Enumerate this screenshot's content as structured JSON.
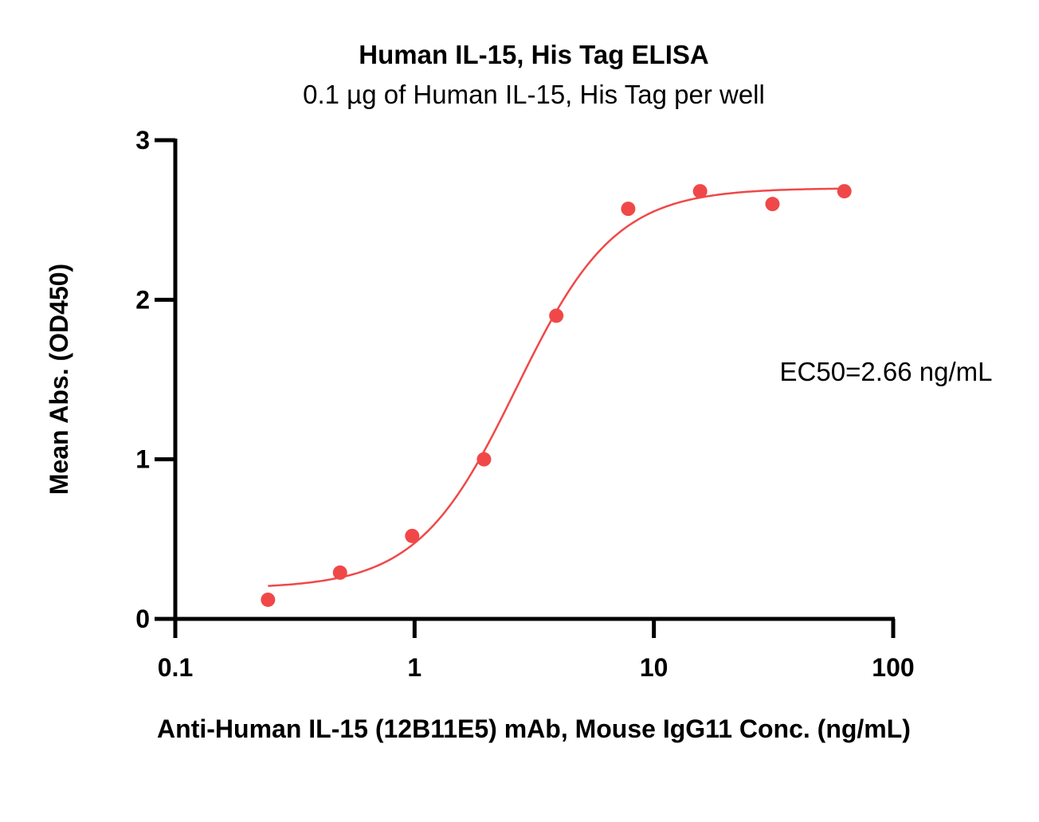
{
  "chart_data": {
    "type": "scatter",
    "title": "Human IL-15, His Tag ELISA",
    "subtitle": "0.1 µg of Human IL-15, His Tag per well",
    "xlabel": "Anti-Human IL-15 (12B11E5) mAb, Mouse IgG11 Conc. (ng/mL)",
    "ylabel": "Mean Abs. (OD450)",
    "xscale": "log",
    "xlim": [
      0.1,
      100
    ],
    "ylim": [
      0,
      3
    ],
    "x_ticks": [
      0.1,
      1,
      10,
      100
    ],
    "x_tick_labels": [
      "0.1",
      "1",
      "10",
      "100"
    ],
    "y_ticks": [
      0,
      1,
      2,
      3
    ],
    "y_tick_labels": [
      "0",
      "1",
      "2",
      "3"
    ],
    "grid": false,
    "series": [
      {
        "color": "#f04848",
        "x": [
          0.244,
          0.488,
          0.977,
          1.95,
          3.91,
          7.81,
          15.6,
          31.3,
          62.5
        ],
        "y": [
          0.12,
          0.29,
          0.52,
          1.0,
          1.9,
          2.57,
          2.68,
          2.6,
          2.68
        ]
      }
    ],
    "fit": {
      "type": "4PL",
      "color": "#f04848",
      "bottom": 0.19,
      "top": 2.7,
      "ec50": 2.66,
      "hill": 2.1,
      "x_range": [
        0.244,
        62.5
      ]
    },
    "annotations": [
      "EC50=2.66 ng/mL"
    ]
  }
}
